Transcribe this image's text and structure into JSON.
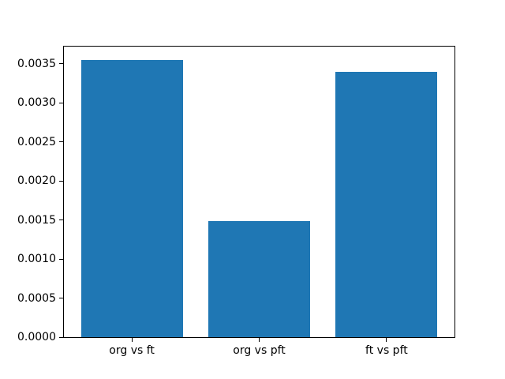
{
  "chart_data": {
    "type": "bar",
    "title": "",
    "xlabel": "",
    "ylabel": "",
    "categories": [
      "org vs ft",
      "org vs pft",
      "ft vs pft"
    ],
    "values": [
      0.00355,
      0.00149,
      0.00339
    ],
    "bar_color": "#1f77b4",
    "bar_width": 0.8,
    "xlim": [
      -0.54,
      2.54
    ],
    "ylim": [
      0,
      0.0037275
    ],
    "ytick_values": [
      0.0,
      0.0005,
      0.001,
      0.0015,
      0.002,
      0.0025,
      0.003,
      0.0035
    ],
    "ytick_labels": [
      "0.0000",
      "0.0005",
      "0.0010",
      "0.0015",
      "0.0020",
      "0.0025",
      "0.0030",
      "0.0035"
    ],
    "grid": false,
    "legend_position": "none",
    "frame_color": "#000000",
    "background_color": "#ffffff"
  }
}
